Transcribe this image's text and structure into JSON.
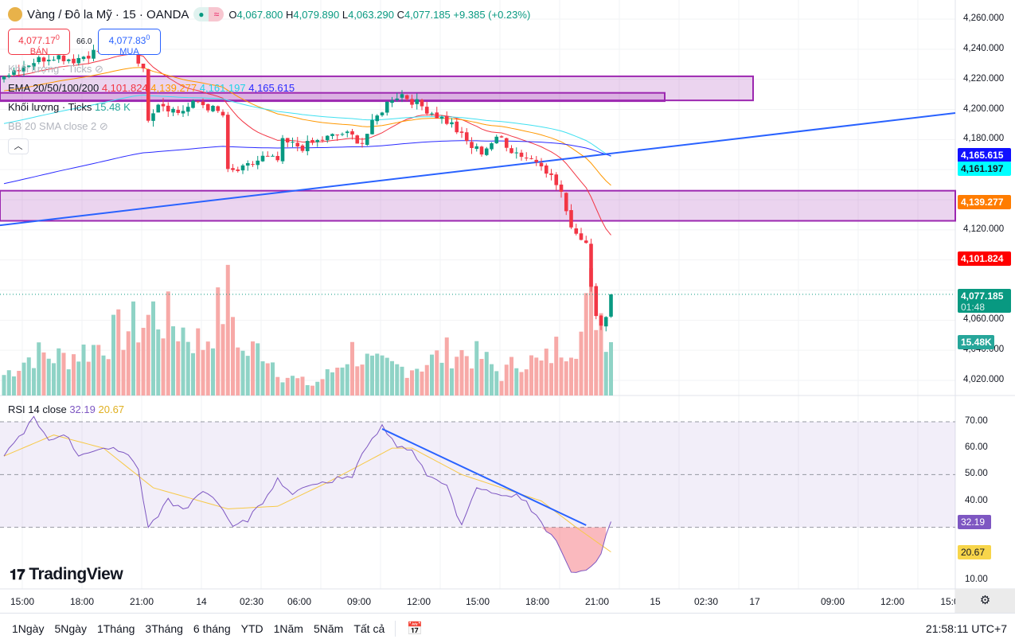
{
  "header": {
    "symbol": "Vàng / Đô la Mỹ · 15 · OANDA",
    "o_label": "O",
    "o": "4,067.800",
    "h_label": "H",
    "h": "4,079.890",
    "l_label": "L",
    "l": "4,063.290",
    "c_label": "C",
    "c": "4,077.185",
    "change": "+9.385 (+0.23%)"
  },
  "trade": {
    "sell_price": "4,077.17",
    "sell_sup": "0",
    "sell_label": "BÁN",
    "spread": "66.0",
    "buy_price": "4,077.83",
    "buy_sup": "0",
    "buy_label": "MUA"
  },
  "legend": {
    "vol_ghost": "Khối lượng · Ticks",
    "ema_label": "EMA 20/50/100/200",
    "ema20": "4,101.824",
    "ema50": "4,139.277",
    "ema100": "4,161.197",
    "ema200": "4,165.615",
    "vol_label": "Khối lượng · Ticks",
    "vol_value": "15.48 K",
    "bb_label": "BB 20 SMA close 2",
    "rsi_label": "RSI 14 close",
    "rsi_value": "32.19",
    "rsi_ma": "20.67"
  },
  "price_axis": [
    "4,260.000",
    "4,240.000",
    "4,220.000",
    "4,200.000",
    "4,180.000",
    "4,120.000",
    "4,060.000",
    "4,040.000",
    "4,020.000"
  ],
  "price_tags": {
    "ema200": "4,165.615",
    "ema100": "4,161.197",
    "ema50": "4,139.277",
    "ema20": "4,101.824",
    "last": "4,077.185",
    "countdown": "01:48",
    "volume": "15.48K",
    "rsi": "32.19",
    "rsi_ma": "20.67"
  },
  "rsi_axis": [
    "70.00",
    "60.00",
    "50.00",
    "40.00",
    "10.00"
  ],
  "time_axis": [
    "15:00",
    "18:00",
    "21:00",
    "14",
    "02:30",
    "06:00",
    "09:00",
    "12:00",
    "15:00",
    "18:00",
    "21:00",
    "15",
    "02:30",
    "17",
    "09:00",
    "12:00",
    "15:0"
  ],
  "brand": "TradingView",
  "bottom": {
    "ranges": [
      "1Ngày",
      "5Ngày",
      "1Tháng",
      "3Tháng",
      "6 tháng",
      "YTD",
      "1Năm",
      "5Năm",
      "Tất cả"
    ],
    "clock": "21:58:11 UTC+7"
  },
  "colors": {
    "up": "#089981",
    "down": "#f23645",
    "ema20": "#f23645",
    "ema50": "#ff9800",
    "ema100": "#40e0f0",
    "ema200": "#2a2aff",
    "zone": "#9c27b0",
    "trend": "#2962ff",
    "rsi": "#7e57c2",
    "rsi_ma": "#f7c948"
  },
  "chart_data": {
    "type": "candlestick",
    "title": "Vàng / Đô la Mỹ · 15 · OANDA",
    "ylim": [
      4010,
      4270
    ],
    "close_keypoints": [
      [
        0,
        4222
      ],
      [
        3,
        4228
      ],
      [
        6,
        4232
      ],
      [
        10,
        4236
      ],
      [
        14,
        4233
      ],
      [
        18,
        4238
      ],
      [
        22,
        4242
      ],
      [
        26,
        4241
      ],
      [
        28,
        4225
      ],
      [
        29,
        4195
      ],
      [
        31,
        4205
      ],
      [
        35,
        4198
      ],
      [
        39,
        4205
      ],
      [
        42,
        4200
      ],
      [
        44,
        4196
      ],
      [
        45,
        4158
      ],
      [
        48,
        4160
      ],
      [
        52,
        4168
      ],
      [
        55,
        4166
      ],
      [
        56,
        4178
      ],
      [
        60,
        4175
      ],
      [
        64,
        4180
      ],
      [
        68,
        4184
      ],
      [
        70,
        4182
      ],
      [
        72,
        4178
      ],
      [
        74,
        4190
      ],
      [
        76,
        4200
      ],
      [
        78,
        4208
      ],
      [
        80,
        4210
      ],
      [
        82,
        4206
      ],
      [
        84,
        4202
      ],
      [
        86,
        4198
      ],
      [
        88,
        4194
      ],
      [
        90,
        4190
      ],
      [
        92,
        4182
      ],
      [
        94,
        4175
      ],
      [
        96,
        4172
      ],
      [
        98,
        4178
      ],
      [
        100,
        4181
      ],
      [
        102,
        4173
      ],
      [
        104,
        4170
      ],
      [
        106,
        4167
      ],
      [
        108,
        4165
      ],
      [
        110,
        4155
      ],
      [
        112,
        4145
      ],
      [
        113,
        4130
      ],
      [
        115,
        4118
      ],
      [
        117,
        4112
      ],
      [
        118,
        4085
      ],
      [
        119,
        4065
      ],
      [
        120,
        4055
      ],
      [
        121,
        4060
      ],
      [
        122,
        4077.185
      ]
    ],
    "volume_keypoints_k": [
      [
        0,
        6
      ],
      [
        6,
        12
      ],
      [
        12,
        11
      ],
      [
        18,
        14
      ],
      [
        24,
        19
      ],
      [
        28,
        21
      ],
      [
        30,
        24
      ],
      [
        34,
        21
      ],
      [
        40,
        15
      ],
      [
        45,
        29
      ],
      [
        48,
        12
      ],
      [
        52,
        14
      ],
      [
        56,
        6
      ],
      [
        62,
        3
      ],
      [
        66,
        7
      ],
      [
        70,
        13
      ],
      [
        74,
        9
      ],
      [
        80,
        8
      ],
      [
        84,
        9
      ],
      [
        90,
        13
      ],
      [
        96,
        11
      ],
      [
        100,
        6
      ],
      [
        104,
        11
      ],
      [
        108,
        9
      ],
      [
        112,
        15
      ],
      [
        116,
        18
      ],
      [
        118,
        29
      ],
      [
        120,
        24
      ],
      [
        122,
        15.48
      ]
    ],
    "rsi_keypoints": [
      [
        0,
        57
      ],
      [
        6,
        72
      ],
      [
        9,
        63
      ],
      [
        12,
        65
      ],
      [
        15,
        57
      ],
      [
        20,
        60
      ],
      [
        25,
        58
      ],
      [
        27,
        52
      ],
      [
        29,
        30
      ],
      [
        33,
        41
      ],
      [
        36,
        37
      ],
      [
        40,
        44
      ],
      [
        43,
        40
      ],
      [
        46,
        30
      ],
      [
        49,
        34
      ],
      [
        52,
        40
      ],
      [
        55,
        47
      ],
      [
        58,
        43
      ],
      [
        61,
        46
      ],
      [
        66,
        47
      ],
      [
        70,
        50
      ],
      [
        73,
        62
      ],
      [
        76,
        67
      ],
      [
        79,
        62
      ],
      [
        82,
        58
      ],
      [
        86,
        49
      ],
      [
        89,
        46
      ],
      [
        92,
        31
      ],
      [
        95,
        45
      ],
      [
        98,
        43
      ],
      [
        101,
        42
      ],
      [
        105,
        40
      ],
      [
        108,
        32
      ],
      [
        111,
        25
      ],
      [
        114,
        13
      ],
      [
        118,
        14
      ],
      [
        120,
        20
      ],
      [
        122,
        32.19
      ]
    ],
    "rsi_ma_keypoints": [
      [
        0,
        57
      ],
      [
        10,
        65
      ],
      [
        20,
        60
      ],
      [
        30,
        45
      ],
      [
        45,
        37
      ],
      [
        55,
        38
      ],
      [
        65,
        47
      ],
      [
        78,
        60
      ],
      [
        82,
        60
      ],
      [
        92,
        50
      ],
      [
        100,
        45
      ],
      [
        108,
        40
      ],
      [
        115,
        30
      ],
      [
        122,
        20.67
      ]
    ],
    "zones": [
      [
        4206,
        4222
      ],
      [
        4205.5,
        4211
      ],
      [
        4126,
        4146
      ]
    ],
    "trendline": [
      [
        0,
        4123
      ],
      [
        1,
        4197.6
      ]
    ],
    "rsi_trendline": [
      [
        76,
        67.3
      ],
      [
        117,
        30.8
      ]
    ]
  }
}
